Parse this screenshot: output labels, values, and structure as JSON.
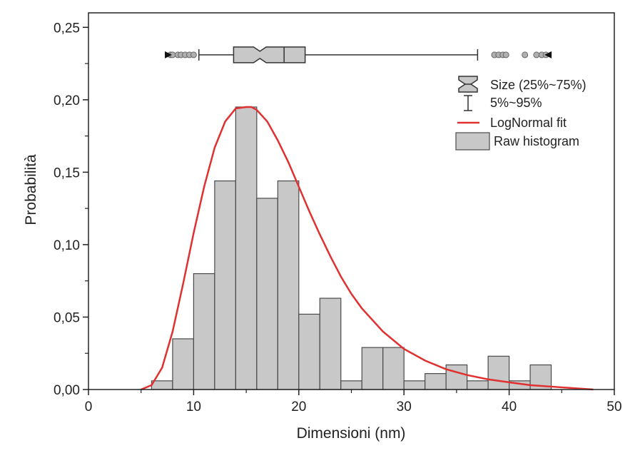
{
  "chart_data": {
    "type": "bar",
    "title": "",
    "xlabel": "Dimensioni (nm)",
    "ylabel": "Probabilità",
    "xlim": [
      0,
      50
    ],
    "ylim": [
      0,
      0.26
    ],
    "x_ticks": [
      0,
      10,
      20,
      30,
      40,
      50
    ],
    "x_tick_labels": [
      "0",
      "10",
      "20",
      "30",
      "40",
      "50"
    ],
    "y_ticks": [
      0,
      0.05,
      0.1,
      0.15,
      0.2,
      0.25
    ],
    "y_tick_labels": [
      "0,00",
      "0,05",
      "0,10",
      "0,15",
      "0,20",
      "0,25"
    ],
    "grid": false,
    "legend_position": "top-right",
    "bin_width": 2,
    "bins": [
      {
        "x0": 6,
        "x1": 8,
        "value": 0.006
      },
      {
        "x0": 8,
        "x1": 10,
        "value": 0.035
      },
      {
        "x0": 10,
        "x1": 12,
        "value": 0.08
      },
      {
        "x0": 12,
        "x1": 14,
        "value": 0.144
      },
      {
        "x0": 14,
        "x1": 16,
        "value": 0.195
      },
      {
        "x0": 16,
        "x1": 18,
        "value": 0.132
      },
      {
        "x0": 18,
        "x1": 20,
        "value": 0.144
      },
      {
        "x0": 20,
        "x1": 22,
        "value": 0.052
      },
      {
        "x0": 22,
        "x1": 24,
        "value": 0.063
      },
      {
        "x0": 24,
        "x1": 26,
        "value": 0.006
      },
      {
        "x0": 26,
        "x1": 28,
        "value": 0.029
      },
      {
        "x0": 28,
        "x1": 30,
        "value": 0.029
      },
      {
        "x0": 30,
        "x1": 32,
        "value": 0.006
      },
      {
        "x0": 32,
        "x1": 34,
        "value": 0.011
      },
      {
        "x0": 34,
        "x1": 36,
        "value": 0.017
      },
      {
        "x0": 36,
        "x1": 38,
        "value": 0.006
      },
      {
        "x0": 38,
        "x1": 40,
        "value": 0.023
      },
      {
        "x0": 40,
        "x1": 42,
        "value": 0.006
      },
      {
        "x0": 42,
        "x1": 44,
        "value": 0.017
      }
    ],
    "fit_curve": {
      "name": "LogNormal fit",
      "color": "#e03030",
      "x": [
        5,
        6,
        7,
        8,
        9,
        10,
        11,
        12,
        13,
        14,
        15,
        15.5,
        16,
        17,
        18,
        19,
        20,
        21,
        22,
        23,
        24,
        25,
        26,
        28,
        30,
        32,
        34,
        36,
        38,
        40,
        42,
        44,
        46,
        48
      ],
      "y": [
        0.0,
        0.003,
        0.015,
        0.04,
        0.073,
        0.108,
        0.14,
        0.167,
        0.185,
        0.194,
        0.195,
        0.195,
        0.193,
        0.185,
        0.172,
        0.157,
        0.14,
        0.123,
        0.107,
        0.092,
        0.078,
        0.066,
        0.056,
        0.04,
        0.028,
        0.02,
        0.014,
        0.01,
        0.007,
        0.005,
        0.003,
        0.002,
        0.001,
        0.0
      ]
    },
    "boxplot": {
      "y_level": 0.231,
      "whisker_low": 10.5,
      "q1": 13.8,
      "notch_low": 15.7,
      "median": 18.6,
      "notch_high": 16.9,
      "q3": 20.6,
      "whisker_high": 37.0,
      "outliers": [
        7.8,
        8.0,
        8.5,
        8.8,
        9.2,
        9.6,
        10.0,
        38.6,
        39.0,
        39.4,
        39.7,
        41.5,
        42.6,
        43.1,
        43.5
      ],
      "min_marker": 7.6,
      "max_marker": 43.7
    },
    "legend": [
      {
        "label": "Size (25%~75%)",
        "symbol": "notched-box"
      },
      {
        "label": "5%~95%",
        "symbol": "whisker"
      },
      {
        "label": "LogNormal fit",
        "symbol": "line"
      },
      {
        "label": "Raw histogram",
        "symbol": "bar"
      }
    ],
    "colors": {
      "bar_fill": "#c8c8c8",
      "bar_stroke": "#4a4a4a",
      "fit_line": "#e03030",
      "box_fill": "#c8c8c8",
      "axis": "#222222",
      "outlier_fill": "#b0b0b0",
      "marker_fill": "#111111"
    }
  }
}
